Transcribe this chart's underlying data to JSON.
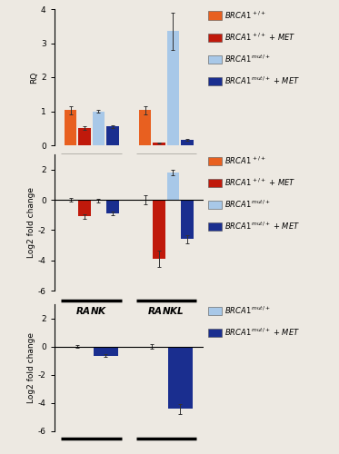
{
  "panel1": {
    "ylabel": "RQ",
    "ylim": [
      0,
      4
    ],
    "yticks": [
      0,
      1,
      2,
      3,
      4
    ],
    "groups": [
      "RANK",
      "RANKL"
    ],
    "bars": [
      {
        "color": "#E86020",
        "values": [
          1.03,
          1.03
        ],
        "errors": [
          0.12,
          0.12
        ]
      },
      {
        "color": "#C0190B",
        "values": [
          0.5,
          0.07
        ],
        "errors": [
          0.05,
          0.02
        ]
      },
      {
        "color": "#A8C8E8",
        "values": [
          1.0,
          3.35
        ],
        "errors": [
          0.05,
          0.55
        ]
      },
      {
        "color": "#1A2E8F",
        "values": [
          0.55,
          0.17
        ],
        "errors": [
          0.04,
          0.03
        ]
      }
    ],
    "legend": [
      {
        "color": "#E86020",
        "text1": "BRCA1",
        "sup": "+/+",
        "text2": ""
      },
      {
        "color": "#C0190B",
        "text1": "BRCA1",
        "sup": "+/+",
        "text2": " + MET"
      },
      {
        "color": "#A8C8E8",
        "text1": "BRCA1",
        "sup": "mut/+",
        "text2": ""
      },
      {
        "color": "#1A2E8F",
        "text1": "BRCA1",
        "sup": "mut/+",
        "text2": " + MET"
      }
    ]
  },
  "panel2": {
    "ylabel": "Log2 fold change",
    "ylim": [
      -6,
      3
    ],
    "yticks": [
      -6,
      -4,
      -2,
      0,
      2
    ],
    "groups": [
      "RANK",
      "RANKL"
    ],
    "bars": [
      {
        "color": "#E86020",
        "values": [
          0.0,
          0.0
        ],
        "errors": [
          0.1,
          0.3
        ]
      },
      {
        "color": "#C0190B",
        "values": [
          -1.1,
          -3.9
        ],
        "errors": [
          0.15,
          0.55
        ]
      },
      {
        "color": "#A8C8E8",
        "values": [
          -0.05,
          1.8
        ],
        "errors": [
          0.1,
          0.2
        ]
      },
      {
        "color": "#1A2E8F",
        "values": [
          -0.9,
          -2.6
        ],
        "errors": [
          0.1,
          0.25
        ]
      }
    ],
    "legend": [
      {
        "color": "#E86020",
        "text1": "BRCA1",
        "sup": "+/+",
        "text2": ""
      },
      {
        "color": "#C0190B",
        "text1": "BRCA1",
        "sup": "+/+",
        "text2": " + MET"
      },
      {
        "color": "#A8C8E8",
        "text1": "BRCA1",
        "sup": "mut/+",
        "text2": ""
      },
      {
        "color": "#1A2E8F",
        "text1": "BRCA1",
        "sup": "mut/+",
        "text2": " + MET"
      }
    ]
  },
  "panel3": {
    "ylabel": "Log2 fold change",
    "ylim": [
      -6,
      3
    ],
    "yticks": [
      -6,
      -4,
      -2,
      0,
      2
    ],
    "groups": [
      "RANK",
      "RANKL"
    ],
    "bars": [
      {
        "color": "#A8C8E8",
        "values": [
          0.0,
          0.0
        ],
        "errors": [
          0.1,
          0.15
        ]
      },
      {
        "color": "#1A2E8F",
        "values": [
          -0.65,
          -4.4
        ],
        "errors": [
          0.1,
          0.35
        ]
      }
    ],
    "legend": [
      {
        "color": "#A8C8E8",
        "text1": "BRCA1",
        "sup": "mut/+",
        "text2": ""
      },
      {
        "color": "#1A2E8F",
        "text1": "BRCA1",
        "sup": "mut/+",
        "text2": " + MET"
      }
    ]
  },
  "background": "#EDE9E2"
}
